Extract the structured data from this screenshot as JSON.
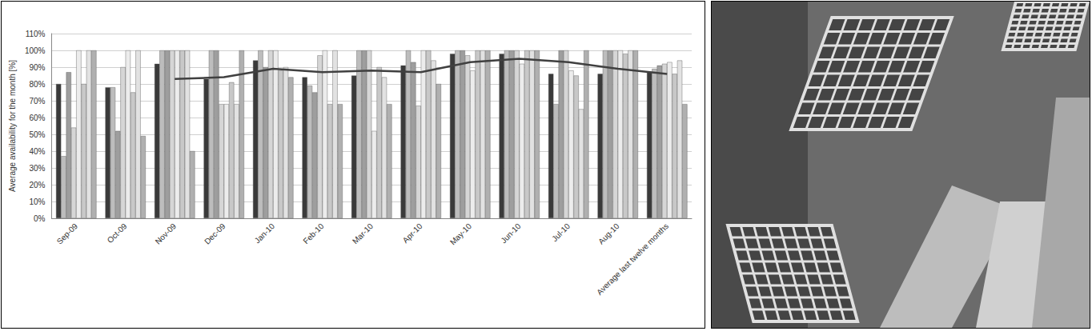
{
  "chart_data": {
    "type": "bar",
    "ylabel": "Average availability for the month [%]",
    "categories": [
      "Sep-09",
      "Oct-09",
      "Nov-09",
      "Dec-09",
      "Jan-10",
      "Feb-10",
      "Mar-10",
      "Apr-10",
      "May-10",
      "Jun-10",
      "Jul-10",
      "Aug-10",
      "Average last twelve months"
    ],
    "series": [
      {
        "color": "#3a3a3a",
        "values": [
          80,
          78,
          92,
          83,
          94,
          84,
          85,
          91,
          98,
          98,
          86,
          86,
          87
        ]
      },
      {
        "color": "#bdbdbd",
        "values": [
          37,
          78,
          100,
          100,
          100,
          79,
          100,
          100,
          100,
          100,
          68,
          100,
          89
        ]
      },
      {
        "color": "#9e9e9e",
        "values": [
          87,
          52,
          100,
          100,
          90,
          75,
          100,
          93,
          100,
          100,
          100,
          100,
          91
        ]
      },
      {
        "color": "#d6d6d6",
        "values": [
          54,
          90,
          100,
          68,
          100,
          97,
          100,
          67,
          97,
          100,
          100,
          100,
          92
        ]
      },
      {
        "color": "#ececec",
        "values": [
          100,
          100,
          100,
          68,
          100,
          100,
          52,
          100,
          88,
          92,
          88,
          100,
          93
        ]
      },
      {
        "color": "#c8c8c8",
        "values": [
          80,
          75,
          100,
          81,
          88,
          68,
          90,
          100,
          100,
          100,
          85,
          98,
          86
        ]
      },
      {
        "color": "#e2e2e2",
        "values": [
          100,
          100,
          100,
          68,
          90,
          100,
          84,
          94,
          100,
          100,
          65,
          100,
          94
        ]
      },
      {
        "color": "#b0b0b0",
        "values": [
          100,
          49,
          40,
          100,
          84,
          68,
          68,
          80,
          100,
          100,
          100,
          100,
          68
        ]
      },
      {
        "type": "line",
        "color": "#404040",
        "values": [
          null,
          null,
          83,
          84,
          89,
          87,
          88,
          87,
          93,
          95,
          93,
          89,
          86
        ]
      }
    ],
    "ylim": [
      0,
      110
    ],
    "yticks": [
      {
        "value": 0,
        "label": "0%"
      },
      {
        "value": 10,
        "label": "10%"
      },
      {
        "value": 20,
        "label": "20%"
      },
      {
        "value": 30,
        "label": "30%"
      },
      {
        "value": 40,
        "label": "40%"
      },
      {
        "value": 50,
        "label": "50%"
      },
      {
        "value": 60,
        "label": "60%"
      },
      {
        "value": 70,
        "label": "70%"
      },
      {
        "value": 80,
        "label": "80%"
      },
      {
        "value": 90,
        "label": "90%"
      },
      {
        "value": 100,
        "label": "100%"
      },
      {
        "value": 110,
        "label": "110%"
      }
    ],
    "grid": true
  }
}
